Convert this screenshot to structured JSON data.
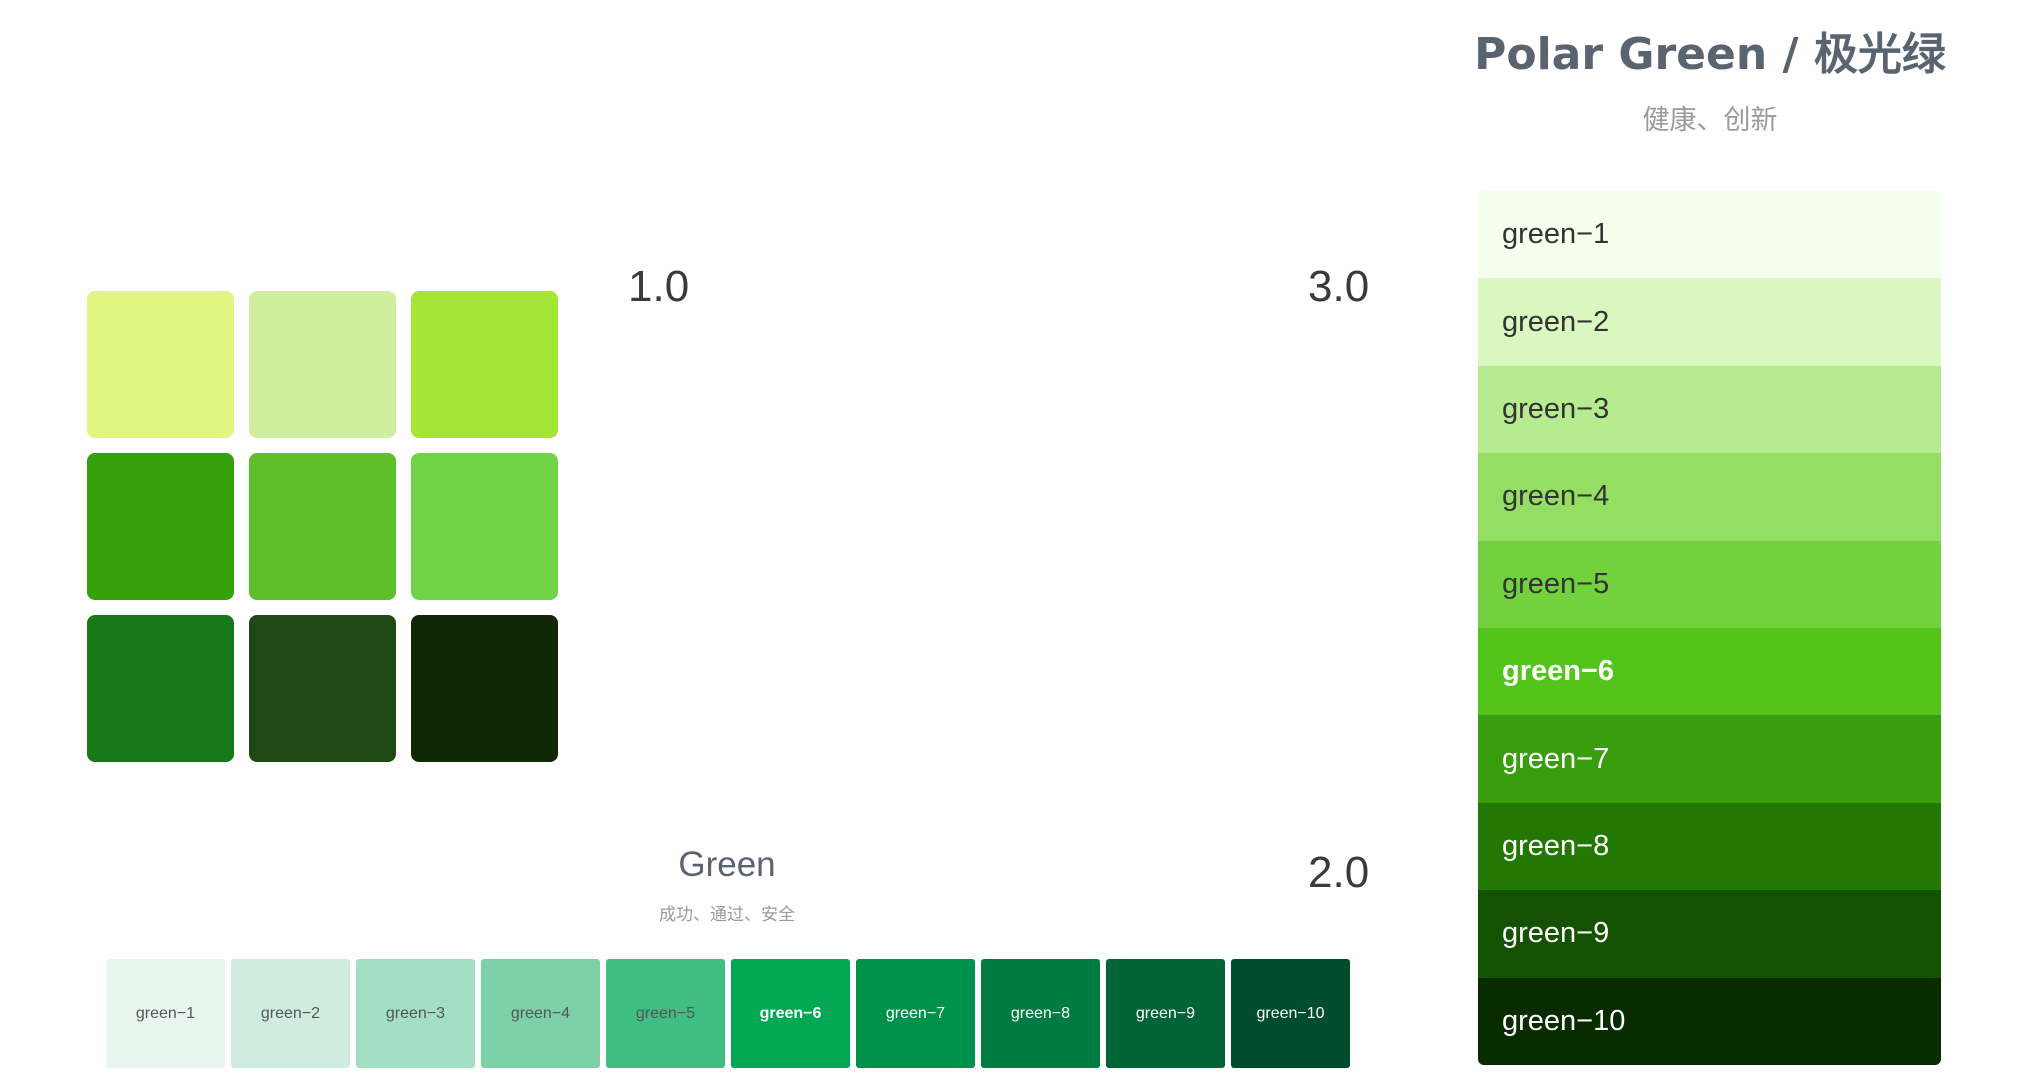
{
  "versions": {
    "v1": "1.0",
    "v2": "2.0",
    "v3": "3.0"
  },
  "v1_grid": {
    "swatches": [
      "#e0f681",
      "#d0ef9e",
      "#a4e537",
      "#37a10c",
      "#5fbf2a",
      "#6fd546",
      "#177918",
      "#1e4914",
      "#112807"
    ]
  },
  "v2_strip": {
    "title": "Green",
    "subtitle": "成功、通过、安全",
    "swatches": [
      {
        "label": "green−1",
        "color": "#e8f6ef",
        "text_color": "#555555",
        "bold": false
      },
      {
        "label": "green−2",
        "color": "#d0ece0",
        "text_color": "#555555",
        "bold": false
      },
      {
        "label": "green−3",
        "color": "#a3e0c3",
        "text_color": "#555555",
        "bold": false
      },
      {
        "label": "green−4",
        "color": "#7bd0a5",
        "text_color": "#555555",
        "bold": false
      },
      {
        "label": "green−5",
        "color": "#40bd82",
        "text_color": "#555555",
        "bold": false
      },
      {
        "label": "green−6",
        "color": "#00a854",
        "text_color": "#ffffff",
        "bold": true
      },
      {
        "label": "green−7",
        "color": "#00914a",
        "text_color": "#ffffff",
        "bold": false
      },
      {
        "label": "green−8",
        "color": "#007b42",
        "text_color": "#ffffff",
        "bold": false
      },
      {
        "label": "green−9",
        "color": "#006436",
        "text_color": "#ffffff",
        "bold": false
      },
      {
        "label": "green−10",
        "color": "#004d2e",
        "text_color": "#ffffff",
        "bold": false
      }
    ]
  },
  "v3_column": {
    "title": "Polar Green / 极光绿",
    "subtitle": "健康、创新",
    "swatches": [
      {
        "label": "green−1",
        "color": "#f6ffed",
        "text_color": "#333333",
        "bold": false
      },
      {
        "label": "green−2",
        "color": "#d9f7be",
        "text_color": "#333333",
        "bold": false
      },
      {
        "label": "green−3",
        "color": "#b7eb8f",
        "text_color": "#333333",
        "bold": false
      },
      {
        "label": "green−4",
        "color": "#95de64",
        "text_color": "#333333",
        "bold": false
      },
      {
        "label": "green−5",
        "color": "#73d13d",
        "text_color": "#333333",
        "bold": false
      },
      {
        "label": "green−6",
        "color": "#52c41a",
        "text_color": "#ffffff",
        "bold": true
      },
      {
        "label": "green−7",
        "color": "#389e0d",
        "text_color": "#ffffff",
        "bold": false
      },
      {
        "label": "green−8",
        "color": "#237804",
        "text_color": "#ffffff",
        "bold": false
      },
      {
        "label": "green−9",
        "color": "#135200",
        "text_color": "#ffffff",
        "bold": false
      },
      {
        "label": "green−10",
        "color": "#092b00",
        "text_color": "#ffffff",
        "bold": false
      }
    ]
  }
}
